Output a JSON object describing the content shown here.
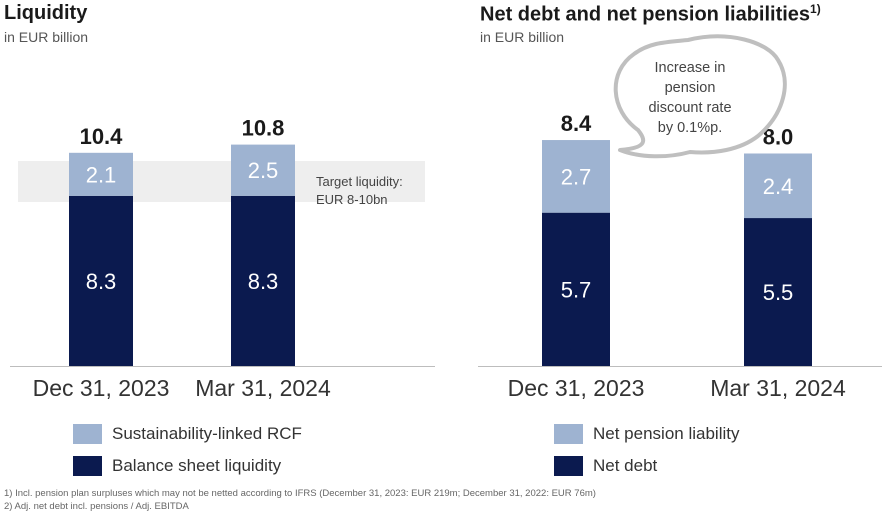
{
  "colors": {
    "dark": "#0b1a4f",
    "light": "#9eb3d1",
    "band": "#eeeeee",
    "callout_border": "#bfbfbf"
  },
  "left": {
    "title": "Liquidity",
    "subtitle": "in EUR billion",
    "band_label_1": "Target liquidity:",
    "band_label_2": "EUR 8-10bn",
    "legend": [
      "Sustainability-linked RCF",
      "Balance sheet liquidity"
    ]
  },
  "right": {
    "title": "Net debt and net pension liabilities",
    "title_sup": "1)",
    "subtitle": "in EUR billion",
    "callout": [
      "Increase in",
      "pension",
      "discount rate",
      "by 0.1%p."
    ],
    "legend": [
      "Net pension liability",
      "Net debt"
    ]
  },
  "footnotes": [
    "1) Incl. pension plan surpluses which may not be netted according to IFRS (December 31, 2023: EUR 219m; December 31, 2022: EUR 76m)",
    "2) Adj. net debt incl. pensions / Adj. EBITDA"
  ],
  "chart_data": [
    {
      "type": "bar",
      "stacked": true,
      "title": "Liquidity",
      "subtitle": "in EUR billion",
      "categories": [
        "Dec 31, 2023",
        "Mar 31, 2024"
      ],
      "series": [
        {
          "name": "Balance sheet liquidity",
          "values": [
            8.3,
            8.3
          ]
        },
        {
          "name": "Sustainability-linked RCF",
          "values": [
            2.1,
            2.5
          ]
        }
      ],
      "totals": [
        "10.4",
        "10.8"
      ],
      "value_labels": [
        [
          "8.3",
          "8.3"
        ],
        [
          "2.1",
          "2.5"
        ]
      ],
      "target_band": [
        8,
        10
      ]
    },
    {
      "type": "bar",
      "stacked": true,
      "title": "Net debt and net pension liabilities",
      "subtitle": "in EUR billion",
      "categories": [
        "Dec 31, 2023",
        "Mar 31, 2024"
      ],
      "series": [
        {
          "name": "Net debt",
          "values": [
            5.7,
            5.5
          ]
        },
        {
          "name": "Net pension liability",
          "values": [
            2.7,
            2.4
          ]
        }
      ],
      "totals": [
        "8.4",
        "8.0"
      ],
      "value_labels": [
        [
          "5.7",
          "5.5"
        ],
        [
          "2.7",
          "2.4"
        ]
      ]
    }
  ]
}
